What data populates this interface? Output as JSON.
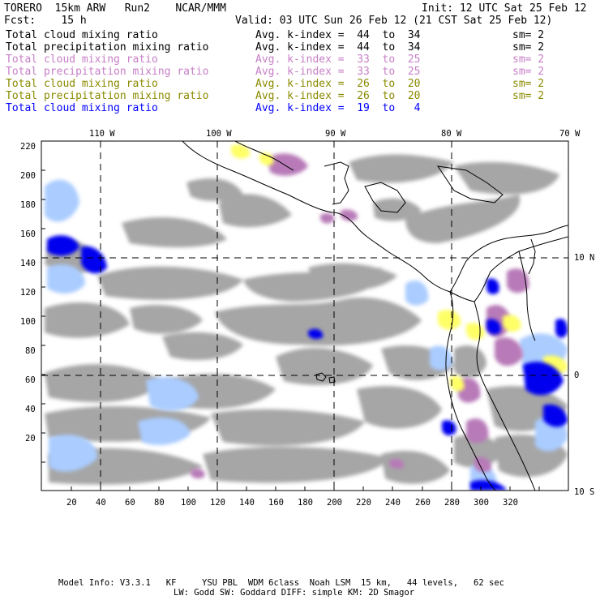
{
  "header": {
    "line1_left": "TORERO  15km ARW   Run2    NCAR/MMM",
    "line1_right": "Init: 12 UTC Sat 25 Feb 12",
    "line2_left": "Fcst:    15 h",
    "line2_right": "Valid: 03 UTC Sun 26 Feb 12 (21 CST Sat 25 Feb 12)"
  },
  "legend": {
    "rows": [
      {
        "name": "Total cloud mixing ratio",
        "kindex": "Avg. k-index =  44  to  34",
        "sm": "sm= 2",
        "color": "#000000"
      },
      {
        "name": "Total precipitation mixing ratio",
        "kindex": "Avg. k-index =  44  to  34",
        "sm": "sm= 2",
        "color": "#000000"
      },
      {
        "name": "Total cloud mixing ratio",
        "kindex": "Avg. k-index =  33  to  25",
        "sm": "sm= 2",
        "color": "#c77fc7"
      },
      {
        "name": "Total precipitation mixing ratio",
        "kindex": "Avg. k-index =  33  to  25",
        "sm": "sm= 2",
        "color": "#c77fc7"
      },
      {
        "name": "Total cloud mixing ratio",
        "kindex": "Avg. k-index =  26  to  20",
        "sm": "sm= 2",
        "color": "#8a8a00"
      },
      {
        "name": "Total precipitation mixing ratio",
        "kindex": "Avg. k-index =  26  to  20",
        "sm": "sm= 2",
        "color": "#8a8a00"
      },
      {
        "name": "Total cloud mixing ratio",
        "kindex": "Avg. k-index =  19  to   4",
        "sm": "",
        "color": "#0000ff"
      }
    ]
  },
  "map": {
    "lon_labels": [
      "110 W",
      "100 W",
      "90 W",
      "80 W",
      "70 W"
    ],
    "lat_labels": [
      "10 N",
      "0",
      "10 S"
    ],
    "x_ticks": [
      "20",
      "40",
      "60",
      "80",
      "100",
      "120",
      "140",
      "160",
      "180",
      "200",
      "220",
      "240",
      "260",
      "280",
      "300",
      "320"
    ],
    "y_ticks": [
      "220",
      "200",
      "180",
      "160",
      "140",
      "120",
      "100",
      "80",
      "60",
      "40",
      "20"
    ],
    "colors": {
      "gray_cloud": "#a6a6a6",
      "dark_gray": "#7f7f7f",
      "purple": "#b87ab8",
      "yellow": "#ffff66",
      "blue": "#0000ee",
      "light_blue": "#aaccff",
      "coast": "#000000"
    }
  },
  "footer": {
    "line1": "Model Info: V3.3.1   KF     YSU PBL  WDM 6class  Noah LSM  15 km,   44 levels,   62 sec",
    "line2": "LW: Godd SW: Goddard DIFF: simple KM: 2D Smagor"
  }
}
